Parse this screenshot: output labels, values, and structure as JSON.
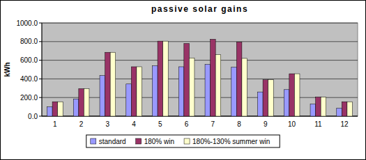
{
  "chart_data": {
    "type": "bar",
    "title": "passive solar gains",
    "y_label": "kWh",
    "categories": [
      "1",
      "2",
      "3",
      "4",
      "5",
      "6",
      "7",
      "8",
      "9",
      "10",
      "11",
      "12"
    ],
    "series": [
      {
        "name": "standard",
        "color": "#9999ff",
        "values": [
          100,
          185,
          435,
          345,
          540,
          530,
          555,
          525,
          260,
          285,
          130,
          85
        ]
      },
      {
        "name": "180% win",
        "color": "#993366",
        "values": [
          155,
          295,
          685,
          530,
          805,
          780,
          825,
          795,
          390,
          455,
          205,
          155
        ]
      },
      {
        "name": "180%-130% summer win",
        "color": "#ffffcc",
        "values": [
          155,
          295,
          685,
          530,
          805,
          625,
          660,
          620,
          390,
          455,
          205,
          155
        ]
      }
    ],
    "ylim": [
      0,
      1000
    ],
    "yticks": [
      {
        "value": 0,
        "label": "0.0"
      },
      {
        "value": 200,
        "label": "200.0"
      },
      {
        "value": 400,
        "label": "400.0"
      },
      {
        "value": 600,
        "label": "600.0"
      },
      {
        "value": 800,
        "label": "800.0"
      },
      {
        "value": 1000,
        "label": "1000.0"
      }
    ],
    "grid": true,
    "legend": "bottom"
  }
}
